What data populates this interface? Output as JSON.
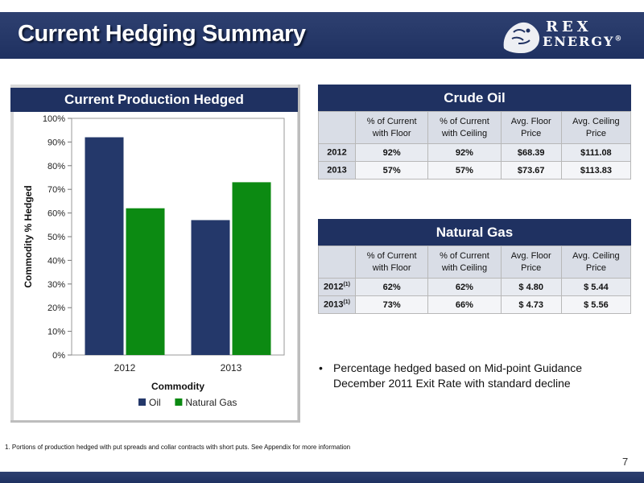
{
  "slide": {
    "title": "Current Hedging Summary",
    "page_number": "7",
    "footnote": "1. Portions of production hedged with put spreads and collar contracts with short puts.  See Appendix for more information",
    "bullet": "Percentage hedged based on Mid-point Guidance December 2011 Exit Rate with standard decline"
  },
  "logo": {
    "line1": "REX",
    "line2": "ENERGY",
    "mark": "®"
  },
  "colors": {
    "navy": "#1f3161",
    "oil": "#1f3161",
    "gas": "#008000"
  },
  "chart_panel": {
    "title": "Current Production Hedged"
  },
  "chart_data": {
    "type": "bar",
    "categories": [
      "2012",
      "2013"
    ],
    "series": [
      {
        "name": "Oil",
        "values": [
          92,
          57
        ],
        "color": "#24386a"
      },
      {
        "name": "Natural Gas",
        "values": [
          62,
          73
        ],
        "color": "#0c8a12"
      }
    ],
    "xlabel": "Commodity",
    "ylabel": "Commodity % Hedged",
    "ylim": [
      0,
      100
    ],
    "yticks": [
      "0%",
      "10%",
      "20%",
      "30%",
      "40%",
      "50%",
      "60%",
      "70%",
      "80%",
      "90%",
      "100%"
    ],
    "legend": "bottom",
    "grid": false
  },
  "crude_oil": {
    "title": "Crude Oil",
    "headers": [
      "",
      "% of Current\nwith Floor",
      "% of Current\nwith Ceiling",
      "Avg. Floor\nPrice",
      "Avg. Ceiling\nPrice"
    ],
    "rows": [
      {
        "year": "2012",
        "sup": "",
        "cells": [
          "92%",
          "92%",
          "$68.39",
          "$111.08"
        ]
      },
      {
        "year": "2013",
        "sup": "",
        "cells": [
          "57%",
          "57%",
          "$73.67",
          "$113.83"
        ]
      }
    ]
  },
  "natural_gas": {
    "title": "Natural Gas",
    "headers": [
      "",
      "% of Current\nwith Floor",
      "% of Current\nwith Ceiling",
      "Avg. Floor\nPrice",
      "Avg. Ceiling\nPrice"
    ],
    "rows": [
      {
        "year": "2012",
        "sup": "(1)",
        "cells": [
          "62%",
          "62%",
          "$ 4.80",
          "$ 5.44"
        ]
      },
      {
        "year": "2013",
        "sup": "(1)",
        "cells": [
          "73%",
          "66%",
          "$ 4.73",
          "$ 5.56"
        ]
      }
    ]
  }
}
